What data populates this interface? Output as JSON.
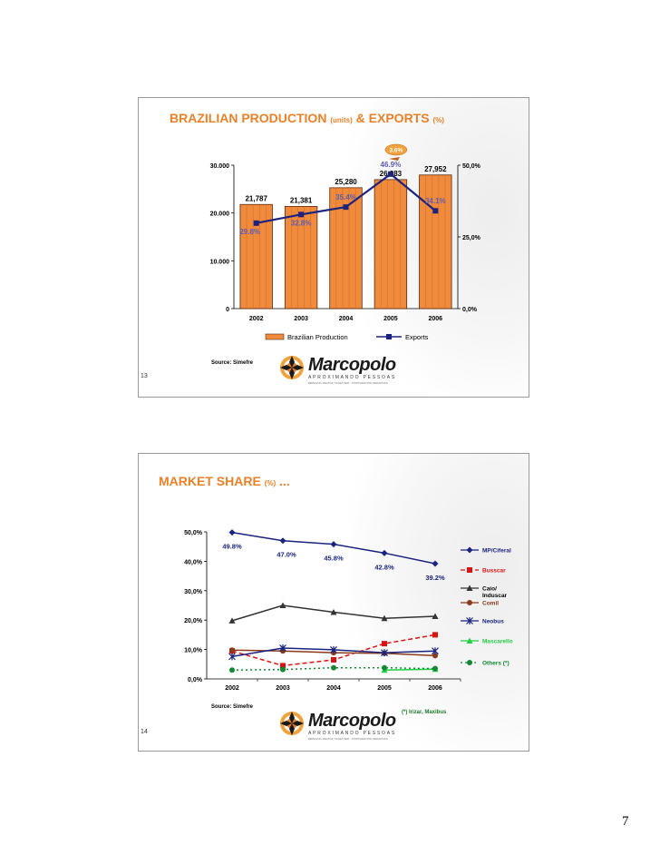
{
  "page_number": "7",
  "slide1": {
    "number": "13",
    "title_main": "BRAZILIAN PRODUCTION",
    "title_units": "(units)",
    "title_amp": "&",
    "title_exports": "EXPORTS",
    "title_pct": "(%)",
    "source": "Source: Simefre",
    "logo": {
      "name": "Marcopolo",
      "tagline": "APROXIMANDO PESSOAS",
      "subline": "BRINGING PEOPLE TOGETHER · APROXIMANDO PERSONAS"
    }
  },
  "slide2": {
    "number": "14",
    "title_main": "MARKET SHARE",
    "title_pct": "(%)",
    "title_dots": "...",
    "source": "Source: Simefre",
    "footnote": "(*) Irizar, Maxibus",
    "logo": {
      "name": "Marcopolo",
      "tagline": "APROXIMANDO PESSOAS",
      "subline": "BRINGING PEOPLE TOGETHER · APROXIMANDO PERSONAS"
    }
  },
  "chart_data": [
    {
      "type": "bar",
      "categories": [
        "2002",
        "2003",
        "2004",
        "2005",
        "2006"
      ],
      "series": [
        {
          "name": "Brazilian Production",
          "values": [
            21787,
            21381,
            25280,
            26983,
            27952
          ],
          "labels": [
            "21,787",
            "21,381",
            "25,280",
            "26,983",
            "27,952"
          ],
          "axis": "left"
        },
        {
          "name": "Exports",
          "type": "line",
          "values": [
            29.8,
            32.8,
            35.4,
            46.9,
            34.1
          ],
          "labels": [
            "29.8%",
            "32.8%",
            "35.4%",
            "46.9%",
            "34.1%"
          ],
          "axis": "right"
        }
      ],
      "y_left": {
        "ylim": [
          0,
          30000
        ],
        "ticks": [
          0,
          10000,
          20000,
          30000
        ],
        "tick_labels": [
          "0",
          "10.000",
          "20.000",
          "30.000"
        ]
      },
      "y_right": {
        "ylim": [
          0,
          50
        ],
        "ticks": [
          0,
          25,
          50
        ],
        "tick_labels": [
          "0,0%",
          "25,0%",
          "50,0%"
        ]
      },
      "annotation": "3.6%",
      "colors": {
        "bar": "#f08a3c",
        "bar_edge": "#5a2a10",
        "line": "#1a237e",
        "label": "#5b5bb5",
        "tick": "#2233aa"
      },
      "legend_position": "bottom"
    },
    {
      "type": "line",
      "categories": [
        "2002",
        "2003",
        "2004",
        "2005",
        "2006"
      ],
      "series": [
        {
          "name": "MP/Ciferal",
          "values": [
            49.8,
            47.0,
            45.8,
            42.8,
            39.2
          ],
          "labels": [
            "49.8%",
            "47.0%",
            "45.8%",
            "42.8%",
            "39.2%"
          ],
          "color": "#1a237e",
          "marker": "diamond",
          "dash": "solid",
          "label_color": "#1a237e"
        },
        {
          "name": "Busscar",
          "values": [
            9.5,
            4.5,
            6.5,
            12.0,
            15.0
          ],
          "color": "#dd1111",
          "marker": "square",
          "dash": "dash",
          "label_color": "#dd1111"
        },
        {
          "name": "Caio/ Induscar",
          "values": [
            19.8,
            25.0,
            22.7,
            20.6,
            21.3
          ],
          "color": "#333333",
          "marker": "triangle",
          "dash": "solid",
          "label_color": "#000000"
        },
        {
          "name": "Comil",
          "values": [
            9.8,
            9.5,
            8.9,
            8.7,
            7.9
          ],
          "color": "#8b3a1a",
          "marker": "circle",
          "dash": "solid",
          "label_color": "#8b3a1a"
        },
        {
          "name": "Neobus",
          "values": [
            7.6,
            10.5,
            9.9,
            8.9,
            9.5
          ],
          "color": "#1a237e",
          "marker": "star",
          "dash": "solid",
          "label_color": "#1a237e"
        },
        {
          "name": "Mascarello",
          "values": [
            null,
            null,
            null,
            3.0,
            3.3
          ],
          "color": "#22cc44",
          "marker": "triangle",
          "dash": "solid",
          "label_color": "#22cc44"
        },
        {
          "name": "Others (*)",
          "values": [
            3.0,
            3.2,
            3.8,
            3.8,
            3.5
          ],
          "color": "#118833",
          "marker": "circle",
          "dash": "dot",
          "label_color": "#118833"
        }
      ],
      "ylim": [
        0,
        50
      ],
      "ticks": [
        0,
        10,
        20,
        30,
        40,
        50
      ],
      "tick_labels": [
        "0,0%",
        "10,0%",
        "20,0%",
        "30,0%",
        "40,0%",
        "50,0%"
      ],
      "legend_position": "right"
    }
  ]
}
